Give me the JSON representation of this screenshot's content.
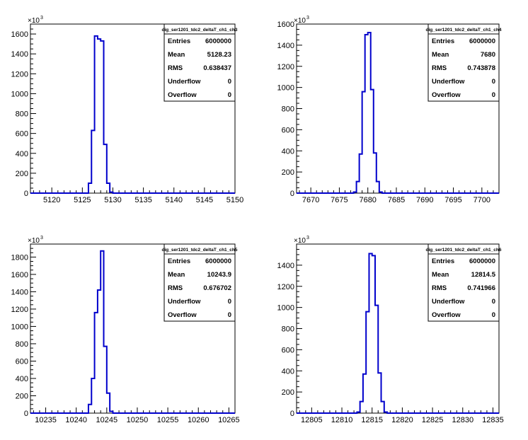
{
  "colors": {
    "histogram": "#0000cc",
    "frame": "#000000",
    "background": "#ffffff"
  },
  "chart_data": [
    {
      "type": "histogram",
      "title": "dig_ser1201_tdc2_deltaT_ch1_ch3",
      "y_multiplier": "×10",
      "y_multiplier_exp": "3",
      "xlim": [
        5116.5,
        5150
      ],
      "ylim": [
        0,
        1700
      ],
      "x_ticks": [
        5120,
        5125,
        5130,
        5135,
        5140,
        5145,
        5150
      ],
      "y_ticks": [
        0,
        200,
        400,
        600,
        800,
        1000,
        1200,
        1400,
        1600
      ],
      "bin_width": 0.5,
      "bins": [
        {
          "x": 5126.0,
          "y": 100
        },
        {
          "x": 5126.5,
          "y": 630
        },
        {
          "x": 5127.0,
          "y": 1580
        },
        {
          "x": 5127.5,
          "y": 1550
        },
        {
          "x": 5128.0,
          "y": 1530
        },
        {
          "x": 5128.5,
          "y": 490
        },
        {
          "x": 5129.0,
          "y": 100
        },
        {
          "x": 5129.5,
          "y": 10
        }
      ],
      "stats": [
        {
          "label": "Entries",
          "value": "6000000"
        },
        {
          "label": "Mean",
          "value": "5128.23"
        },
        {
          "label": "RMS",
          "value": "0.638437"
        },
        {
          "label": "Underflow",
          "value": "0"
        },
        {
          "label": "Overflow",
          "value": "0"
        }
      ]
    },
    {
      "type": "histogram",
      "title": "dig_ser1201_tdc2_deltaT_ch1_ch4",
      "y_multiplier": "×10",
      "y_multiplier_exp": "3",
      "xlim": [
        7667.5,
        7703
      ],
      "ylim": [
        0,
        1600
      ],
      "x_ticks": [
        7670,
        7675,
        7680,
        7685,
        7690,
        7695,
        7700
      ],
      "y_ticks": [
        0,
        200,
        400,
        600,
        800,
        1000,
        1200,
        1400,
        1600
      ],
      "bin_width": 0.5,
      "bins": [
        {
          "x": 7677.5,
          "y": 10
        },
        {
          "x": 7678.0,
          "y": 110
        },
        {
          "x": 7678.5,
          "y": 370
        },
        {
          "x": 7679.0,
          "y": 960
        },
        {
          "x": 7679.5,
          "y": 1500
        },
        {
          "x": 7680.0,
          "y": 1520
        },
        {
          "x": 7680.5,
          "y": 980
        },
        {
          "x": 7681.0,
          "y": 380
        },
        {
          "x": 7681.5,
          "y": 110
        },
        {
          "x": 7682.0,
          "y": 10
        }
      ],
      "stats": [
        {
          "label": "Entries",
          "value": "6000000"
        },
        {
          "label": "Mean",
          "value": "7680"
        },
        {
          "label": "RMS",
          "value": "0.743878"
        },
        {
          "label": "Underflow",
          "value": "0"
        },
        {
          "label": "Overflow",
          "value": "0"
        }
      ]
    },
    {
      "type": "histogram",
      "title": "dig_ser1201_tdc2_deltaT_ch1_ch5",
      "y_multiplier": "×10",
      "y_multiplier_exp": "3",
      "xlim": [
        10232.5,
        10266
      ],
      "ylim": [
        0,
        1950
      ],
      "x_ticks": [
        10235,
        10240,
        10245,
        10250,
        10255,
        10260,
        10265
      ],
      "y_ticks": [
        0,
        200,
        400,
        600,
        800,
        1000,
        1200,
        1400,
        1600,
        1800
      ],
      "bin_width": 0.5,
      "bins": [
        {
          "x": 10242.0,
          "y": 100
        },
        {
          "x": 10242.5,
          "y": 400
        },
        {
          "x": 10243.0,
          "y": 1160
        },
        {
          "x": 10243.5,
          "y": 1420
        },
        {
          "x": 10244.0,
          "y": 1870
        },
        {
          "x": 10244.5,
          "y": 770
        },
        {
          "x": 10245.0,
          "y": 230
        },
        {
          "x": 10245.5,
          "y": 20
        }
      ],
      "stats": [
        {
          "label": "Entries",
          "value": "6000000"
        },
        {
          "label": "Mean",
          "value": "10243.9"
        },
        {
          "label": "RMS",
          "value": "0.676702"
        },
        {
          "label": "Underflow",
          "value": "0"
        },
        {
          "label": "Overflow",
          "value": "0"
        }
      ]
    },
    {
      "type": "histogram",
      "title": "dig_ser1201_tdc2_deltaT_ch1_ch6",
      "y_multiplier": "×10",
      "y_multiplier_exp": "3",
      "xlim": [
        12802.5,
        12836
      ],
      "ylim": [
        0,
        1600
      ],
      "x_ticks": [
        12805,
        12810,
        12815,
        12820,
        12825,
        12830,
        12835
      ],
      "y_ticks": [
        0,
        200,
        400,
        600,
        800,
        1000,
        1200,
        1400
      ],
      "bin_width": 0.5,
      "bins": [
        {
          "x": 12812.5,
          "y": 10
        },
        {
          "x": 12813.0,
          "y": 110
        },
        {
          "x": 12813.5,
          "y": 370
        },
        {
          "x": 12814.0,
          "y": 960
        },
        {
          "x": 12814.5,
          "y": 1510
        },
        {
          "x": 12815.0,
          "y": 1490
        },
        {
          "x": 12815.5,
          "y": 1020
        },
        {
          "x": 12816.0,
          "y": 380
        },
        {
          "x": 12816.5,
          "y": 110
        },
        {
          "x": 12817.0,
          "y": 10
        }
      ],
      "stats": [
        {
          "label": "Entries",
          "value": "6000000"
        },
        {
          "label": "Mean",
          "value": "12814.5"
        },
        {
          "label": "RMS",
          "value": "0.741966"
        },
        {
          "label": "Underflow",
          "value": "0"
        },
        {
          "label": "Overflow",
          "value": "0"
        }
      ]
    }
  ]
}
